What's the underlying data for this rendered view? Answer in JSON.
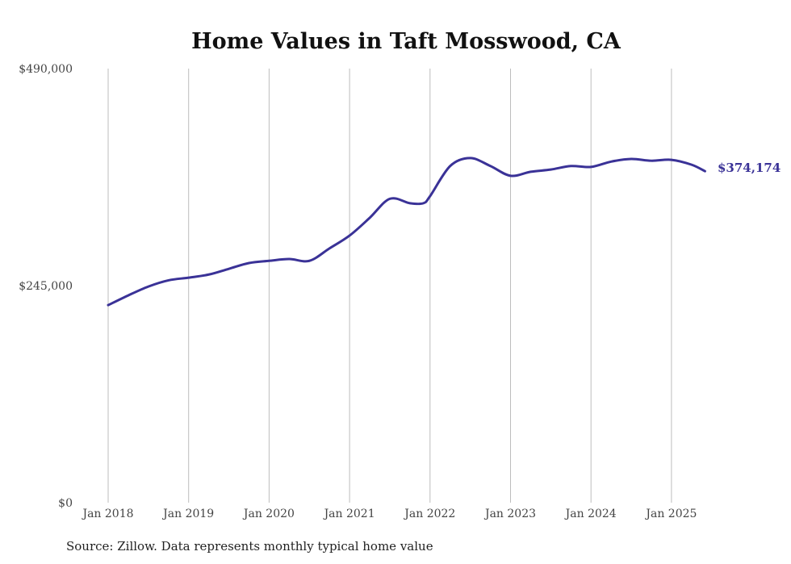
{
  "chart_data": {
    "type": "line",
    "title": "Home Values in Taft Mosswood, CA",
    "xlabel": "",
    "ylabel": "",
    "ylim": [
      0,
      490000
    ],
    "y_ticks": [
      0,
      245000,
      490000
    ],
    "y_tick_labels": [
      "$0",
      "$245,000",
      "$490,000"
    ],
    "x_ticks": [
      "2018-01",
      "2019-01",
      "2020-01",
      "2021-01",
      "2022-01",
      "2023-01",
      "2024-01",
      "2025-01"
    ],
    "x_tick_labels": [
      "Jan 2018",
      "Jan 2019",
      "Jan 2020",
      "Jan 2021",
      "Jan 2022",
      "Jan 2023",
      "Jan 2024",
      "Jan 2025"
    ],
    "grid": "vertical",
    "series": [
      {
        "name": "Typical home value",
        "color": "#3a3297",
        "x": [
          "2018-01",
          "2018-04",
          "2018-07",
          "2018-10",
          "2019-01",
          "2019-04",
          "2019-07",
          "2019-10",
          "2020-01",
          "2020-04",
          "2020-07",
          "2020-10",
          "2021-01",
          "2021-04",
          "2021-07",
          "2021-10",
          "2021-12",
          "2022-01",
          "2022-04",
          "2022-07",
          "2022-10",
          "2023-01",
          "2023-04",
          "2023-07",
          "2023-10",
          "2024-01",
          "2024-04",
          "2024-07",
          "2024-10",
          "2025-01",
          "2025-04",
          "2025-06"
        ],
        "values": [
          223000,
          234000,
          244000,
          251000,
          254000,
          257500,
          264000,
          270500,
          273000,
          275000,
          273000,
          287000,
          301500,
          321500,
          343000,
          338000,
          338000,
          346000,
          380000,
          389000,
          380000,
          369000,
          373500,
          376000,
          380000,
          379000,
          385000,
          388000,
          386000,
          387000,
          381500,
          374174
        ]
      }
    ],
    "end_label": "$374,174",
    "source": "Source: Zillow. Data represents monthly typical home value"
  }
}
